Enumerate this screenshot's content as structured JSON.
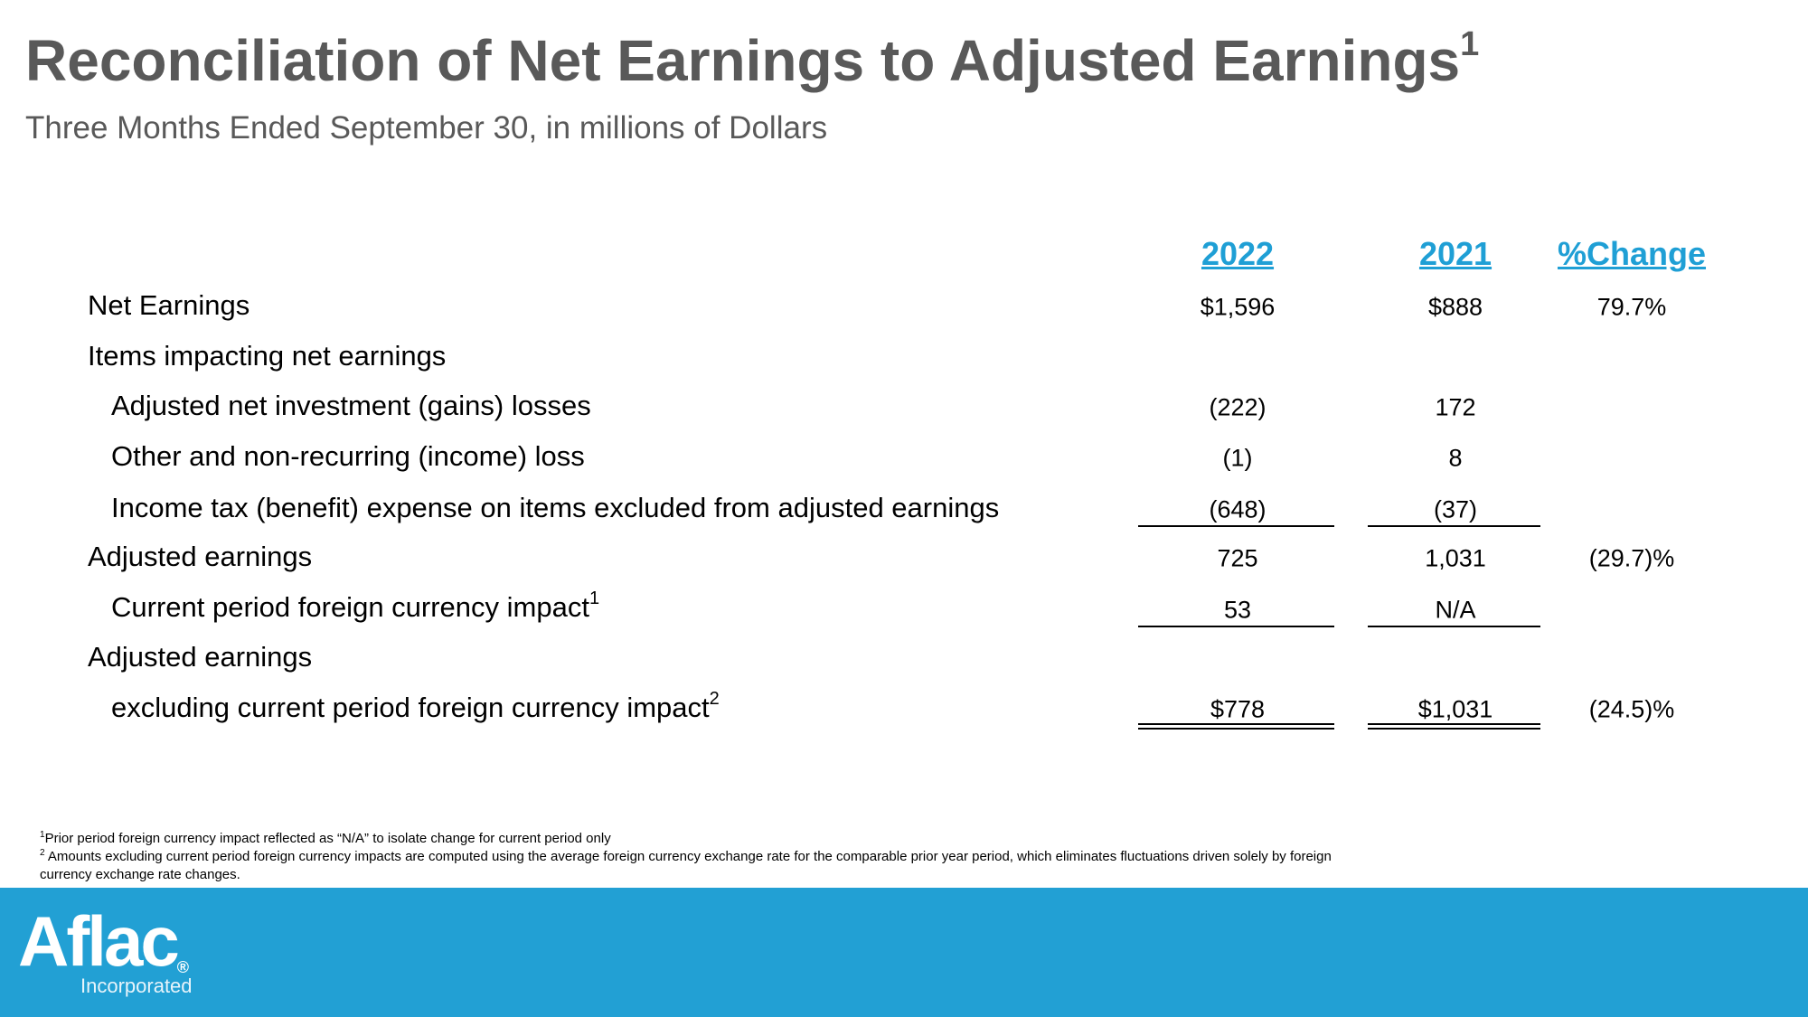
{
  "header": {
    "title": "Reconciliation of Net Earnings to Adjusted Earnings",
    "title_sup": "1",
    "subtitle": "Three Months Ended September 30, in millions of Dollars"
  },
  "table": {
    "columns": [
      "2022",
      "2021",
      "%Change"
    ],
    "rows": [
      {
        "label": "Net Earnings",
        "c2022": "$1,596",
        "c2021": "$888",
        "change": "79.7%"
      },
      {
        "label": "Items impacting net earnings"
      },
      {
        "label": "Adjusted net investment (gains) losses",
        "c2022": "(222)",
        "c2021": "172"
      },
      {
        "label": "Other and non-recurring (income) loss",
        "c2022": "(1)",
        "c2021": "8"
      },
      {
        "label": "Income tax (benefit) expense on items excluded from adjusted earnings",
        "c2022": "(648)",
        "c2021": "(37)"
      },
      {
        "label": "Adjusted earnings",
        "c2022": "725",
        "c2021": "1,031",
        "change": "(29.7)%"
      },
      {
        "label": "Current period foreign currency impact",
        "sup": "1",
        "c2022": "53",
        "c2021": "N/A"
      },
      {
        "label": "Adjusted earnings"
      },
      {
        "label": "excluding current period foreign currency impact",
        "sup": "2",
        "c2022": "$778",
        "c2021": "$1,031",
        "change": "(24.5)%"
      }
    ]
  },
  "footnotes": [
    {
      "mark": "1",
      "text": "Prior period foreign currency impact reflected as “N/A” to isolate change for current period only"
    },
    {
      "mark": "2",
      "text": "Amounts excluding current period foreign currency impacts are computed using the average foreign currency exchange rate for the comparable prior year period, which eliminates fluctuations driven solely by foreign currency exchange rate changes."
    }
  ],
  "logo": {
    "name": "Aflac",
    "mark": "®",
    "tagline": "Incorporated"
  }
}
